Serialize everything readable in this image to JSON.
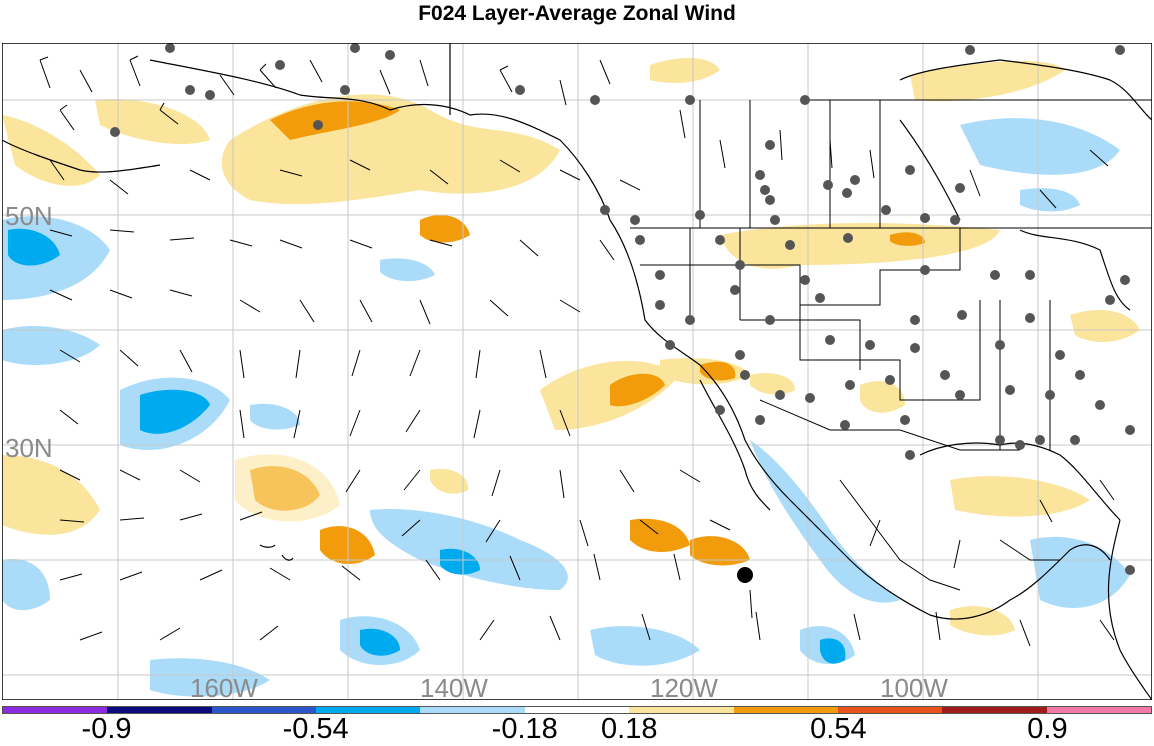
{
  "title": "F024 Layer-Average Zonal Wind",
  "lat_labels": [
    "50N",
    "30N"
  ],
  "lon_labels": [
    "160W",
    "140W",
    "120W",
    "100W"
  ],
  "colorbar": {
    "colors": [
      "#8a2be2",
      "#0a0a7a",
      "#2b55c8",
      "#00aaee",
      "#aadcfa",
      "#ffffff",
      "#fbe49c",
      "#f29c0c",
      "#e8521c",
      "#a01c1c",
      "#f27aa6"
    ],
    "labels": [
      "-0.9",
      "-0.54",
      "-0.18",
      "0.18",
      "0.54",
      "0.9"
    ]
  },
  "legend_scale": {
    "min": -1.08,
    "max": 1.08,
    "ticks": [
      -0.9,
      -0.54,
      -0.18,
      0.18,
      0.54,
      0.9
    ]
  },
  "palette": {
    "positive_light": "#fbe49c",
    "positive_mid": "#f29c0c",
    "negative_light": "#aadcfa",
    "negative_mid": "#00aaee"
  }
}
